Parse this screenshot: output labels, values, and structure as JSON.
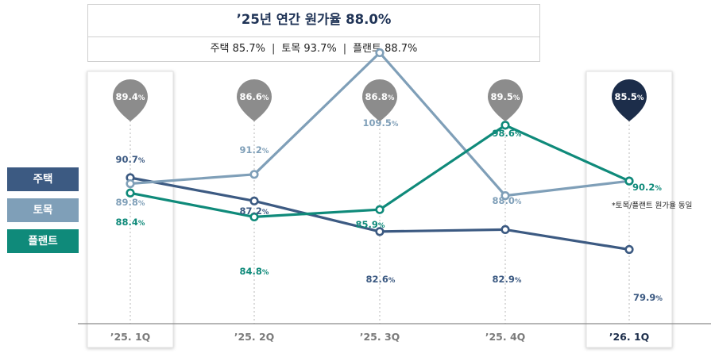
{
  "summary": {
    "title": "’25년 연간 원가율 88.0%",
    "items": [
      "주택 85.7%",
      "토목 93.7%",
      "플랜트 88.7%"
    ]
  },
  "note": "*토목/플랜트 원가율 동일",
  "colors": {
    "housing": "#3c5a82",
    "civil": "#7f9fb8",
    "plant": "#0f8a7a",
    "pin_gray": "#8c8c8c",
    "pin_dark": "#1c2d4a"
  },
  "chart_data": {
    "type": "line",
    "categories": [
      "’25. 1Q",
      "’25. 2Q",
      "’25. 3Q",
      "’25. 4Q",
      "’26. 1Q"
    ],
    "unit": "%",
    "series": [
      {
        "name": "주택",
        "values": [
          90.7,
          87.2,
          82.6,
          82.9,
          79.9
        ],
        "labels": [
          "90.7",
          "87.2",
          "82.6",
          "82.9",
          "79.9"
        ]
      },
      {
        "name": "토목",
        "values": [
          89.8,
          91.2,
          109.5,
          88.0,
          90.2
        ],
        "labels": [
          "89.8",
          "91.2",
          "109.5",
          "88.0",
          ""
        ]
      },
      {
        "name": "플랜트",
        "values": [
          88.4,
          84.8,
          85.9,
          98.6,
          90.2
        ],
        "labels": [
          "88.4",
          "84.8",
          "85.9",
          "98.6",
          "90.2"
        ]
      }
    ],
    "totals": {
      "values": [
        89.4,
        86.6,
        86.8,
        89.5,
        85.5
      ],
      "labels": [
        "89.4",
        "86.6",
        "86.8",
        "89.5",
        "85.5"
      ]
    },
    "highlighted_categories": [
      "’25. 1Q",
      "’26. 1Q"
    ]
  }
}
